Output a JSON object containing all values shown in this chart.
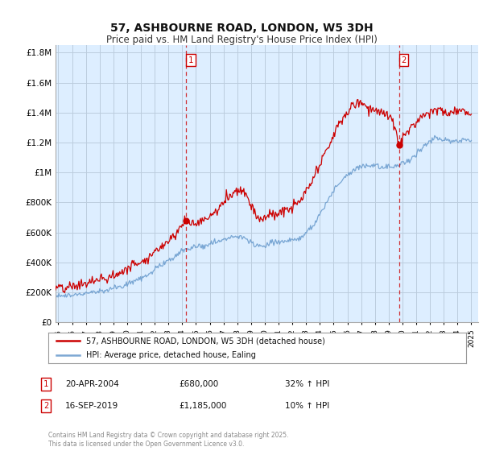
{
  "title": "57, ASHBOURNE ROAD, LONDON, W5 3DH",
  "subtitle": "Price paid vs. HM Land Registry's House Price Index (HPI)",
  "title_fontsize": 10,
  "subtitle_fontsize": 8.5,
  "background_color": "#ffffff",
  "plot_bg_color": "#ddeeff",
  "grid_color": "#bbccdd",
  "red_line_color": "#cc0000",
  "blue_line_color": "#6699cc",
  "vline_color": "#cc0000",
  "annotation1": {
    "marker": "1",
    "date": "20-APR-2004",
    "price": "£680,000",
    "hpi": "32% ↑ HPI",
    "x_year": 2004.3
  },
  "annotation2": {
    "marker": "2",
    "date": "16-SEP-2019",
    "price": "£1,185,000",
    "hpi": "10% ↑ HPI",
    "x_year": 2019.75
  },
  "legend_label1": "57, ASHBOURNE ROAD, LONDON, W5 3DH (detached house)",
  "legend_label2": "HPI: Average price, detached house, Ealing",
  "footer": "Contains HM Land Registry data © Crown copyright and database right 2025.\nThis data is licensed under the Open Government Licence v3.0.",
  "ylim": [
    0,
    1850000
  ],
  "yticks": [
    0,
    200000,
    400000,
    600000,
    800000,
    1000000,
    1200000,
    1400000,
    1600000,
    1800000
  ],
  "ytick_labels": [
    "£0",
    "£200K",
    "£400K",
    "£600K",
    "£800K",
    "£1M",
    "£1.2M",
    "£1.4M",
    "£1.6M",
    "£1.8M"
  ],
  "xmin": 1994.8,
  "xmax": 2025.5
}
